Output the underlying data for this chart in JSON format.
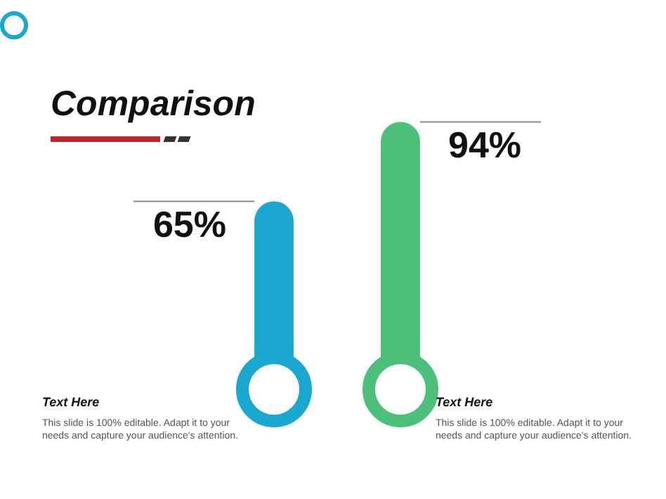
{
  "chart_data": {
    "type": "bar",
    "title": "Comparison",
    "categories": [
      null,
      null
    ],
    "values": [
      65,
      94
    ],
    "colors": [
      "#1aa7d0",
      "#4cbf7a"
    ],
    "value_labels": [
      "65%",
      "94%"
    ],
    "annotations": [
      "Text Here",
      "This slide is 100% editable. Adapt it to your needs and capture your audience's attention.",
      "Text Here",
      "This slide is 100% editable. Adapt it to your needs and capture your audience's attention."
    ],
    "legend": false,
    "tick_labels": false
  }
}
